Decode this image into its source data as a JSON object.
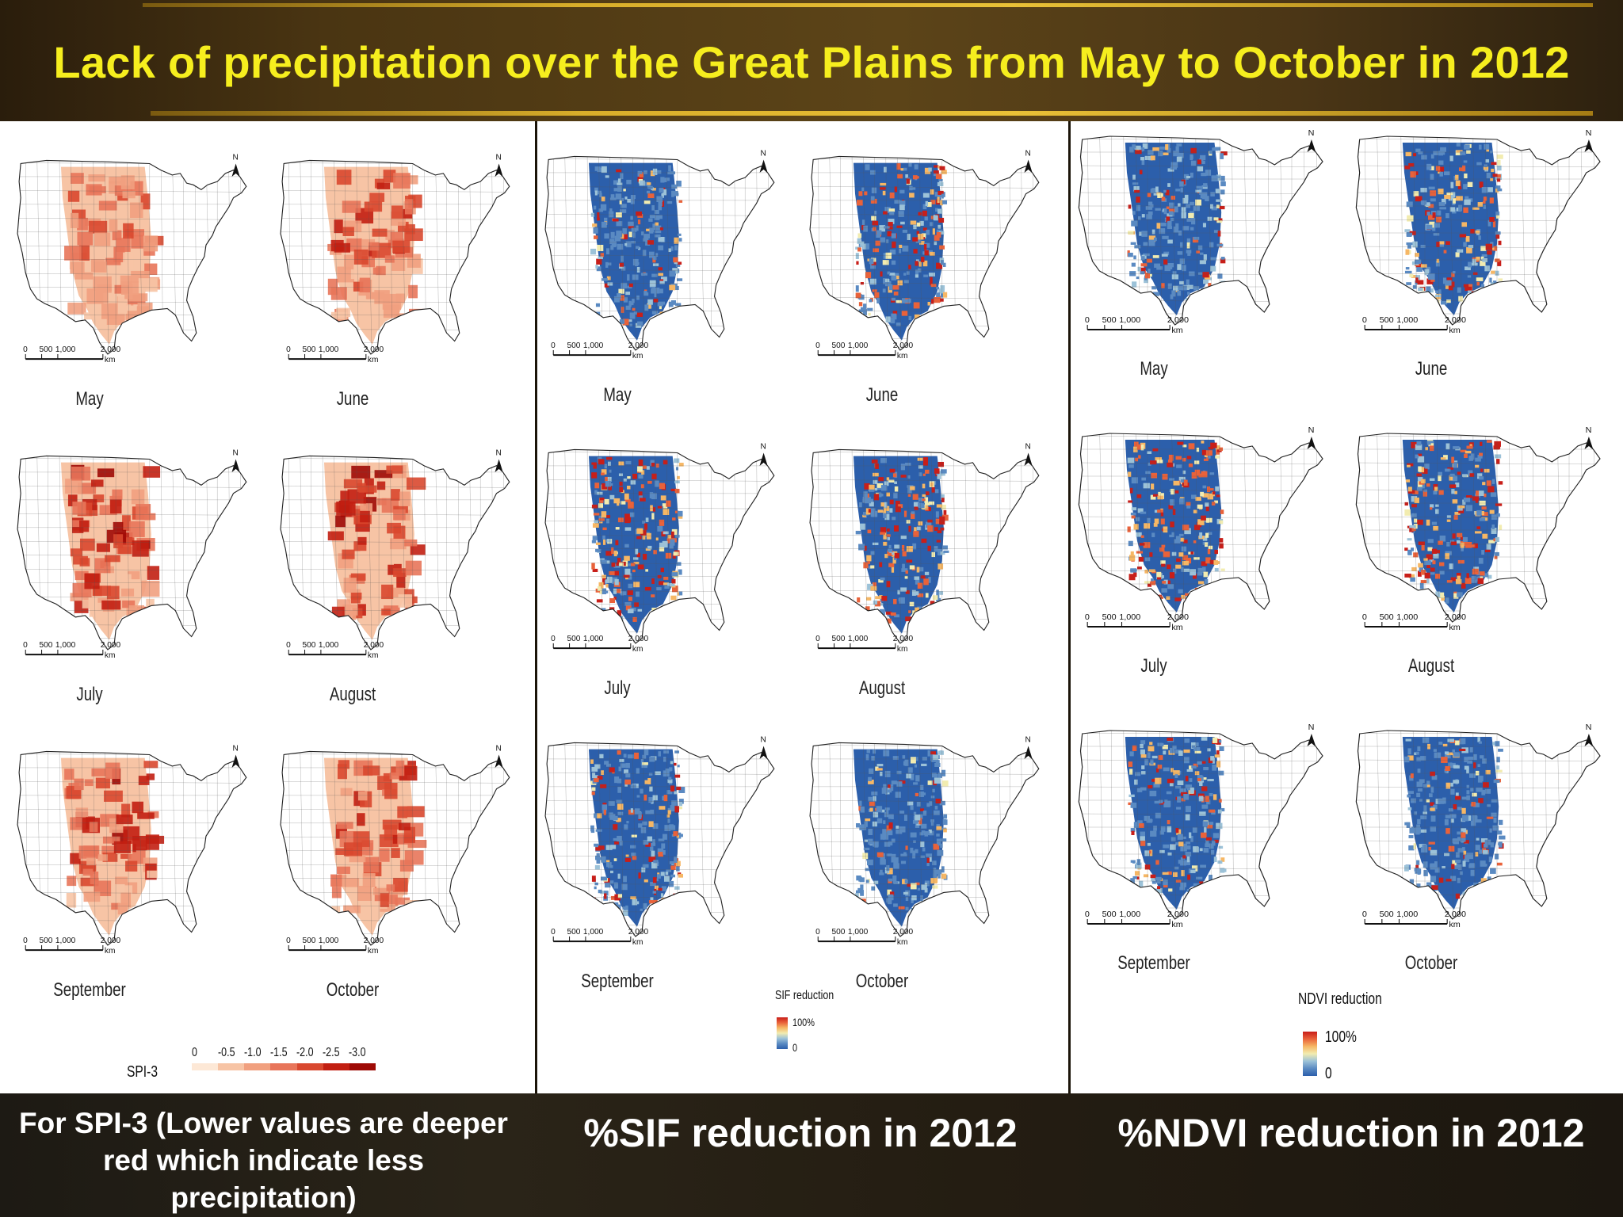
{
  "header": {
    "title": "Lack of precipitation over the Great Plains from May to October in 2012"
  },
  "colors": {
    "title_text": "#f6ee1e",
    "spi_scale": [
      "#fde8d6",
      "#f7c4a5",
      "#f1a07f",
      "#e8755a",
      "#d9482f",
      "#c21f12",
      "#9e0a05"
    ],
    "reduction_ramp": [
      "#2c5fab",
      "#5a8ac2",
      "#9cc2d8",
      "#f2ecb0",
      "#f6b765",
      "#e9623a",
      "#c81e19"
    ]
  },
  "panels": {
    "spi": {
      "maps": [
        {
          "month": "May"
        },
        {
          "month": "June"
        },
        {
          "month": "July"
        },
        {
          "month": "August"
        },
        {
          "month": "September"
        },
        {
          "month": "October"
        }
      ],
      "legend": {
        "title": "SPI-3",
        "ticks": [
          "0",
          "-0.5",
          "-1.0",
          "-1.5",
          "-2.0",
          "-2.5",
          "-3.0"
        ]
      }
    },
    "sif": {
      "maps": [
        {
          "month": "May"
        },
        {
          "month": "June"
        },
        {
          "month": "July"
        },
        {
          "month": "August"
        },
        {
          "month": "September"
        },
        {
          "month": "October"
        }
      ],
      "legend": {
        "title": "SIF reduction",
        "max": "100%",
        "min": "0"
      }
    },
    "ndvi": {
      "maps": [
        {
          "month": "May"
        },
        {
          "month": "June"
        },
        {
          "month": "July"
        },
        {
          "month": "August"
        },
        {
          "month": "September"
        },
        {
          "month": "October"
        }
      ],
      "legend": {
        "title": "NDVI reduction",
        "max": "100%",
        "min": "0"
      }
    }
  },
  "scale_bar": {
    "labels": [
      "0",
      "500",
      "1,000",
      "2,000"
    ],
    "unit": "km"
  },
  "north_arrow": "N",
  "footer": {
    "spi_caption": "For SPI-3 (Lower values are deeper red which indicate less precipitation)",
    "sif_caption": "%SIF reduction in 2012",
    "ndvi_caption": "%NDVI reduction in 2012"
  }
}
